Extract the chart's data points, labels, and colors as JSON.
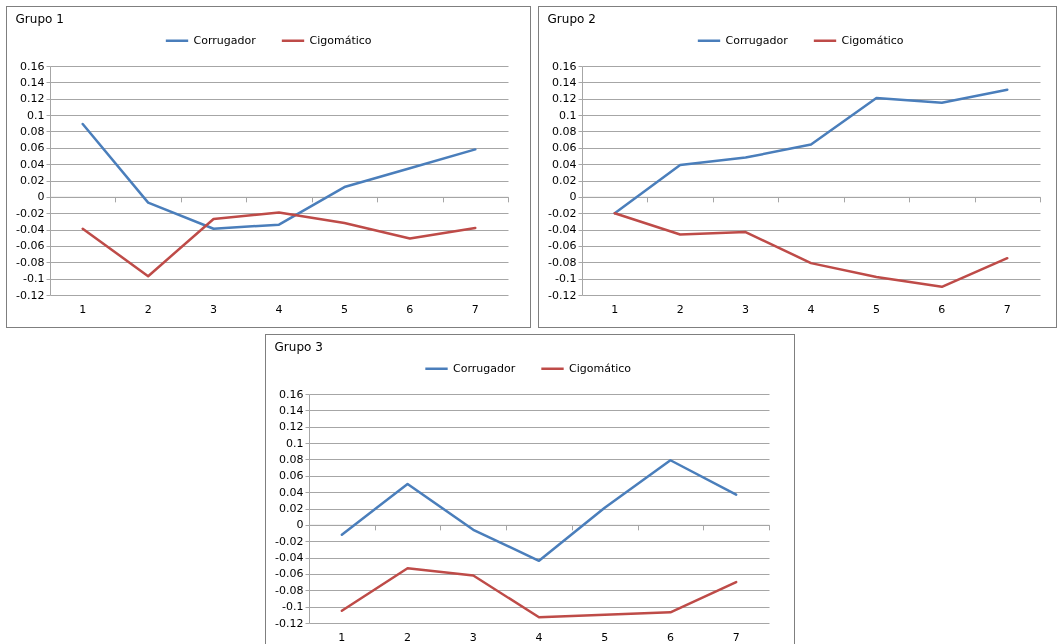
{
  "chart_data": [
    {
      "type": "line",
      "title": "Grupo 1",
      "categories": [
        "1",
        "2",
        "3",
        "4",
        "5",
        "6",
        "7"
      ],
      "series": [
        {
          "name": "Corrugador",
          "color": "#4a7ebb",
          "values": [
            0.089,
            -0.007,
            -0.039,
            -0.034,
            0.012,
            0.035,
            0.058
          ]
        },
        {
          "name": "Cigomático",
          "color": "#be4b48",
          "values": [
            -0.039,
            -0.097,
            -0.027,
            -0.019,
            -0.032,
            -0.051,
            -0.038
          ]
        }
      ],
      "ylim": [
        -0.12,
        0.16
      ],
      "yticks": [
        -0.12,
        -0.1,
        -0.08,
        -0.06,
        -0.04,
        -0.02,
        0,
        0.02,
        0.04,
        0.06,
        0.08,
        0.1,
        0.12,
        0.14,
        0.16
      ],
      "grid": "y",
      "legend": "top"
    },
    {
      "type": "line",
      "title": "Grupo 2",
      "categories": [
        "1",
        "2",
        "3",
        "4",
        "5",
        "6",
        "7"
      ],
      "series": [
        {
          "name": "Corrugador",
          "color": "#4a7ebb",
          "values": [
            -0.02,
            0.039,
            0.048,
            0.064,
            0.121,
            0.115,
            0.131
          ]
        },
        {
          "name": "Cigomático",
          "color": "#be4b48",
          "values": [
            -0.02,
            -0.046,
            -0.043,
            -0.081,
            -0.098,
            -0.11,
            -0.075
          ]
        }
      ],
      "ylim": [
        -0.12,
        0.16
      ],
      "yticks": [
        -0.12,
        -0.1,
        -0.08,
        -0.06,
        -0.04,
        -0.02,
        0,
        0.02,
        0.04,
        0.06,
        0.08,
        0.1,
        0.12,
        0.14,
        0.16
      ],
      "grid": "y",
      "legend": "top"
    },
    {
      "type": "line",
      "title": "Grupo 3",
      "categories": [
        "1",
        "2",
        "3",
        "4",
        "5",
        "6",
        "7"
      ],
      "series": [
        {
          "name": "Corrugador",
          "color": "#4a7ebb",
          "values": [
            -0.012,
            0.05,
            -0.006,
            -0.044,
            0.021,
            0.079,
            0.037
          ]
        },
        {
          "name": "Cigomático",
          "color": "#be4b48",
          "values": [
            -0.105,
            -0.053,
            -0.062,
            -0.113,
            -0.11,
            -0.107,
            -0.07
          ]
        }
      ],
      "ylim": [
        -0.12,
        0.16
      ],
      "yticks": [
        -0.12,
        -0.1,
        -0.08,
        -0.06,
        -0.04,
        -0.02,
        0,
        0.02,
        0.04,
        0.06,
        0.08,
        0.1,
        0.12,
        0.14,
        0.16
      ],
      "grid": "y",
      "legend": "top"
    }
  ]
}
